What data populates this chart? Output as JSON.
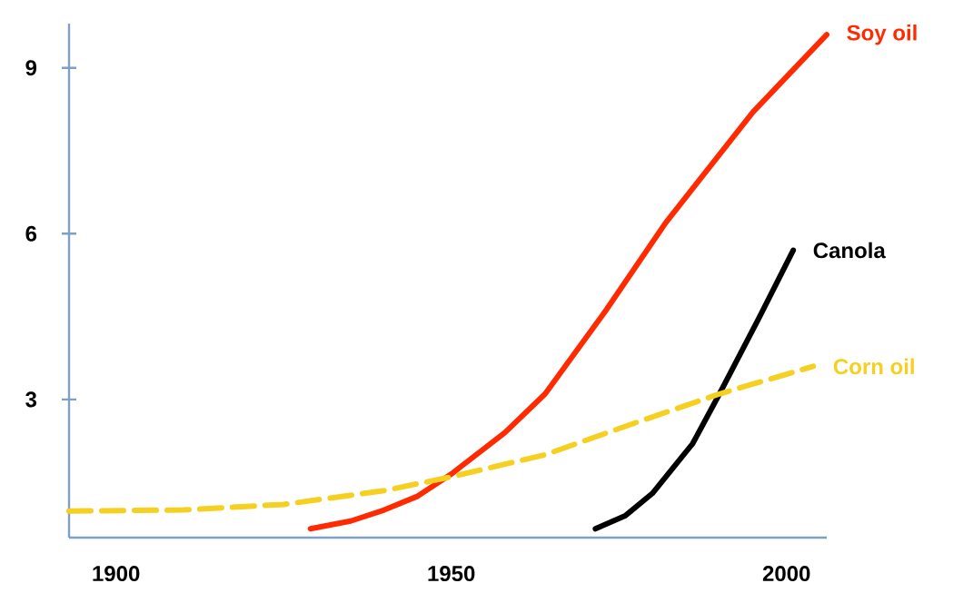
{
  "chart_data": {
    "type": "line",
    "xlim": [
      1893,
      2006
    ],
    "ylim": [
      0.5,
      9.8
    ],
    "xticks": [
      1900,
      1950,
      2000
    ],
    "yticks": [
      3,
      6,
      9
    ],
    "grid": false,
    "legend": false,
    "marker": "none",
    "series": [
      {
        "name": "Soy oil",
        "color": "#ff2a00",
        "line_style": "solid",
        "x": [
          1929,
          1935,
          1940,
          1945,
          1950,
          1958,
          1964,
          1973,
          1982,
          1995,
          2006
        ],
        "values": [
          0.66,
          0.8,
          1.0,
          1.25,
          1.65,
          2.4,
          3.1,
          4.6,
          6.2,
          8.2,
          9.6
        ]
      },
      {
        "name": "Canola",
        "color": "#000000",
        "line_style": "solid",
        "x": [
          1971.5,
          1976,
          1980,
          1986,
          1990,
          1996,
          2001
        ],
        "values": [
          0.66,
          0.9,
          1.3,
          2.2,
          3.1,
          4.5,
          5.7
        ]
      },
      {
        "name": "Corn oil",
        "color": "#f5d020",
        "line_style": "dashed",
        "x": [
          1893,
          1910,
          1925,
          1940,
          1950,
          1964,
          1978,
          1990,
          2004
        ],
        "values": [
          0.98,
          1.0,
          1.1,
          1.35,
          1.6,
          2.0,
          2.6,
          3.1,
          3.6
        ]
      }
    ]
  }
}
